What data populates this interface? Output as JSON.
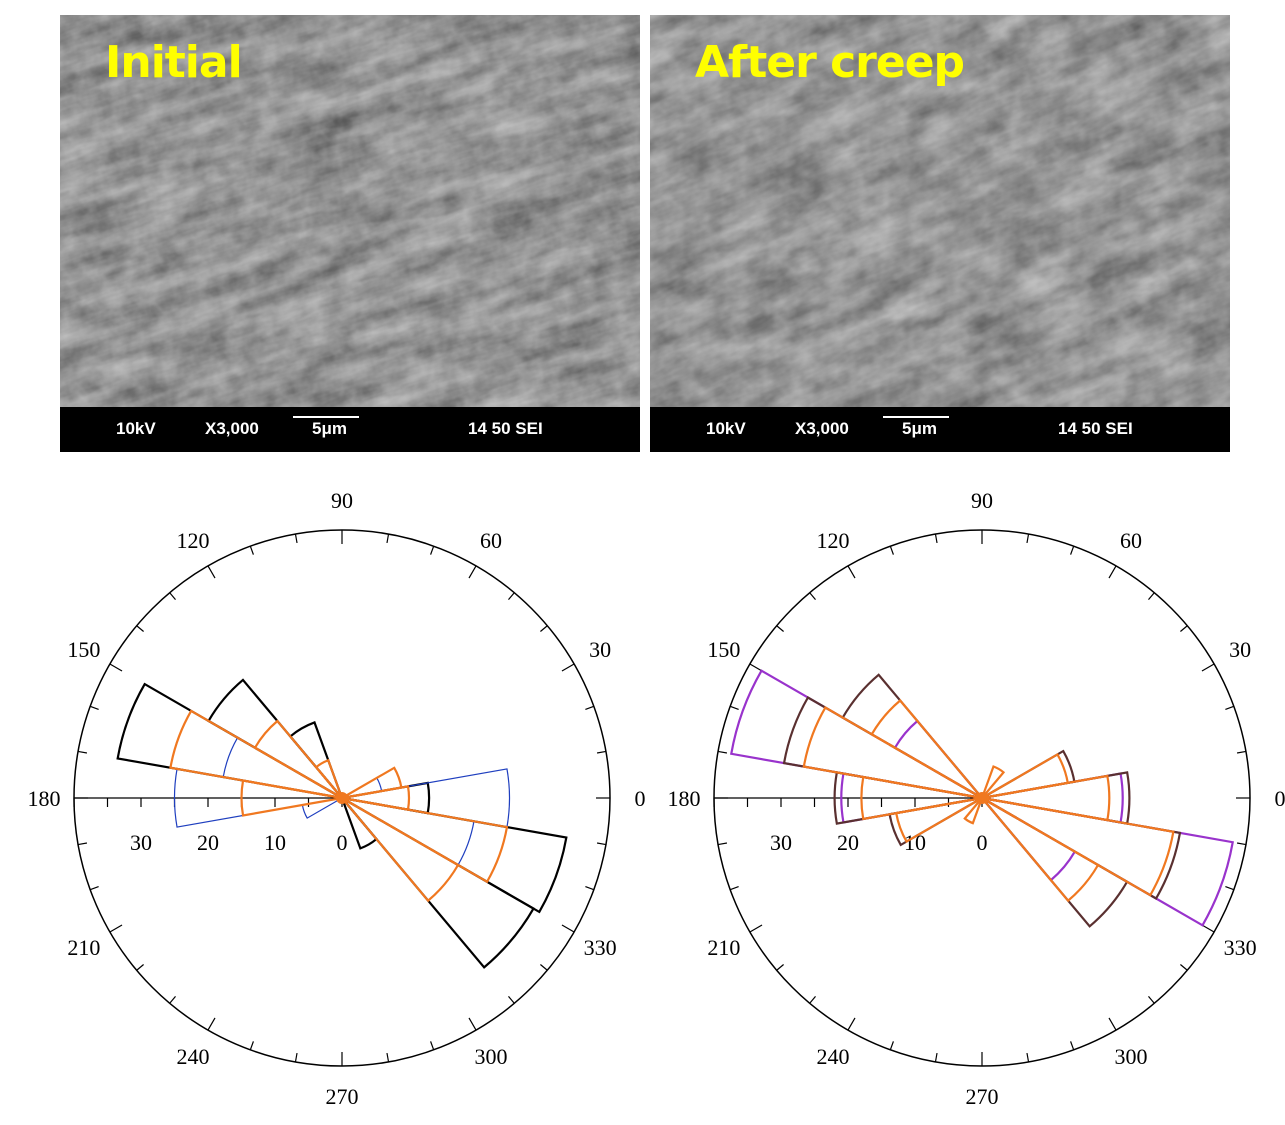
{
  "panels": [
    {
      "label": "Initial",
      "sem_info": {
        "voltage": "10kV",
        "magnification": "X3,000",
        "scale_bar": "5μm",
        "code": "14 50 SEI"
      }
    },
    {
      "label": "After creep",
      "sem_info": {
        "voltage": "10kV",
        "magnification": "X3,000",
        "scale_bar": "5μm",
        "code": "14 50 SEI"
      }
    }
  ],
  "colors": {
    "label": "#ffff00",
    "series_black": "#000000",
    "series_blue": "#1f3fbf",
    "series_orange": "#f07820",
    "series_brown": "#5a3030",
    "series_purple": "#9933cc"
  },
  "chart_data": [
    {
      "type": "rose",
      "angle_ticks": [
        "0",
        "30",
        "60",
        "90",
        "120",
        "150",
        "180",
        "210",
        "240",
        "270",
        "300",
        "330"
      ],
      "radial_ticks": [
        "30",
        "20",
        "10",
        "0"
      ],
      "rmax": 40,
      "bin_width": 20,
      "series": [
        {
          "color": "black",
          "bins": [
            {
              "angle": 340,
              "r": 34
            },
            {
              "angle": 320,
              "r": 33
            },
            {
              "angle": 160,
              "r": 34
            },
            {
              "angle": 140,
              "r": 23
            },
            {
              "angle": 120,
              "r": 12
            },
            {
              "angle": 300,
              "r": 8
            },
            {
              "angle": 0,
              "r": 13
            }
          ]
        },
        {
          "color": "blue",
          "bins": [
            {
              "angle": 0,
              "r": 25
            },
            {
              "angle": 180,
              "r": 25
            },
            {
              "angle": 340,
              "r": 20
            },
            {
              "angle": 160,
              "r": 18
            },
            {
              "angle": 20,
              "r": 6
            },
            {
              "angle": 200,
              "r": 6
            }
          ]
        },
        {
          "color": "orange",
          "bins": [
            {
              "angle": 340,
              "r": 25
            },
            {
              "angle": 320,
              "r": 20
            },
            {
              "angle": 160,
              "r": 26
            },
            {
              "angle": 140,
              "r": 15
            },
            {
              "angle": 0,
              "r": 10
            },
            {
              "angle": 180,
              "r": 15
            },
            {
              "angle": 20,
              "r": 9
            },
            {
              "angle": 120,
              "r": 6
            }
          ]
        }
      ]
    },
    {
      "type": "rose",
      "angle_ticks": [
        "0",
        "30",
        "60",
        "90",
        "120",
        "150",
        "180",
        "210",
        "240",
        "270",
        "300",
        "330"
      ],
      "radial_ticks": [
        "30",
        "20",
        "10",
        "0"
      ],
      "rmax": 40,
      "bin_width": 20,
      "series": [
        {
          "color": "purple",
          "bins": [
            {
              "angle": 340,
              "r": 38
            },
            {
              "angle": 160,
              "r": 38
            },
            {
              "angle": 0,
              "r": 21
            },
            {
              "angle": 180,
              "r": 21
            },
            {
              "angle": 320,
              "r": 16
            },
            {
              "angle": 140,
              "r": 15
            }
          ]
        },
        {
          "color": "brown",
          "bins": [
            {
              "angle": 160,
              "r": 30
            },
            {
              "angle": 340,
              "r": 30
            },
            {
              "angle": 320,
              "r": 25
            },
            {
              "angle": 140,
              "r": 24
            },
            {
              "angle": 0,
              "r": 22
            },
            {
              "angle": 180,
              "r": 22
            },
            {
              "angle": 200,
              "r": 14
            },
            {
              "angle": 20,
              "r": 14
            }
          ]
        },
        {
          "color": "orange",
          "bins": [
            {
              "angle": 340,
              "r": 29
            },
            {
              "angle": 160,
              "r": 27
            },
            {
              "angle": 0,
              "r": 19
            },
            {
              "angle": 180,
              "r": 18
            },
            {
              "angle": 320,
              "r": 20
            },
            {
              "angle": 140,
              "r": 19
            },
            {
              "angle": 20,
              "r": 13
            },
            {
              "angle": 200,
              "r": 13
            },
            {
              "angle": 60,
              "r": 5
            },
            {
              "angle": 240,
              "r": 4
            }
          ]
        }
      ]
    }
  ]
}
